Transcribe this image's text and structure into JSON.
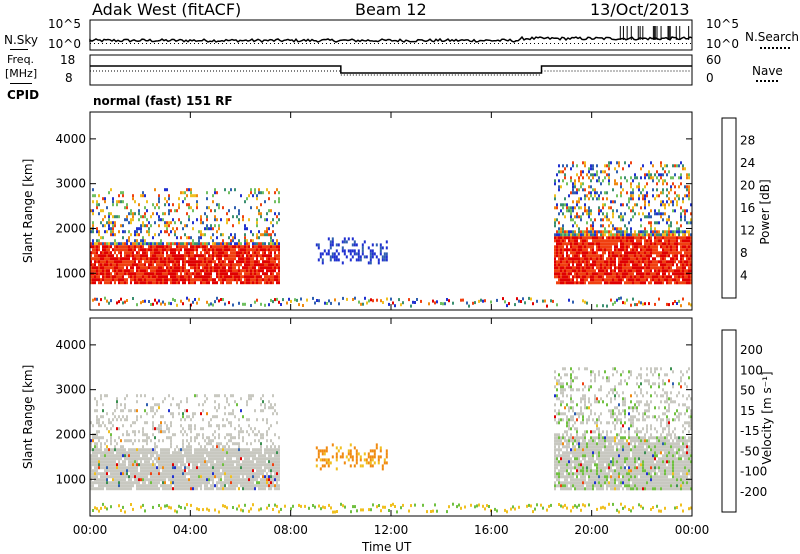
{
  "header": {
    "title": "Adak West (fitACF)",
    "beam": "Beam 12",
    "date": "13/Oct/2013"
  },
  "noise_panel": {
    "left_label": "N.Sky",
    "right_label": "N.Search",
    "left_ticks": [
      "10^5",
      "10^0"
    ],
    "right_ticks": [
      "10^5",
      "10^0"
    ]
  },
  "freq_panel": {
    "left_label_1": "Freq.",
    "left_label_2": "[MHz]",
    "right_label": "Nave",
    "left_ticks": [
      "18",
      "8"
    ],
    "right_ticks": [
      "60",
      "0"
    ],
    "cpid_label": "CPID",
    "cpid_text": "normal (fast) 151 RF"
  },
  "colors": {
    "power_scale": [
      "#2030d0",
      "#2f5fb0",
      "#3a8f70",
      "#70c060",
      "#f0c020",
      "#f08a10",
      "#f04010",
      "#e00000"
    ],
    "velocity_scale": [
      "#e00000",
      "#f04010",
      "#f08a10",
      "#f0c020",
      "#c8c8c0",
      "#70c040",
      "#3a8f50",
      "#2f5fb0",
      "#2030d0"
    ]
  },
  "chart_data": [
    {
      "type": "heatmap",
      "quantity": "power",
      "ylabel": "Slant Range [km]",
      "ylim": [
        180,
        4600
      ],
      "yticks": [
        "1000",
        "2000",
        "3000",
        "4000"
      ],
      "xlim_hours": [
        0,
        24
      ],
      "colorbar": {
        "label": "Power [dB]",
        "ticks": [
          "4",
          "8",
          "12",
          "16",
          "20",
          "24",
          "28"
        ],
        "range": [
          0,
          32
        ]
      },
      "echo_regions": [
        {
          "start_h": 0.0,
          "end_h": 7.5,
          "range_from_km": 800,
          "range_to_km": 2900,
          "peak_db": 30
        },
        {
          "start_h": 9.0,
          "end_h": 11.8,
          "range_from_km": 1200,
          "range_to_km": 1800,
          "peak_db": 6
        },
        {
          "start_h": 18.5,
          "end_h": 24.0,
          "range_from_km": 800,
          "range_to_km": 3500,
          "peak_db": 30
        }
      ]
    },
    {
      "type": "heatmap",
      "quantity": "velocity",
      "ylabel": "Slant Range [km]",
      "ylim": [
        180,
        4600
      ],
      "yticks": [
        "1000",
        "2000",
        "3000",
        "4000"
      ],
      "xlabel": "Time UT",
      "xlim_hours": [
        0,
        24
      ],
      "xticks": [
        "00:00",
        "04:00",
        "08:00",
        "12:00",
        "16:00",
        "20:00",
        "00:00"
      ],
      "colorbar": {
        "label": "Velocity [m s⁻¹]",
        "ticks": [
          "200",
          "100",
          "50",
          "15",
          "-15",
          "-50",
          "-100",
          "-200"
        ],
        "range": [
          -250,
          250
        ]
      },
      "echo_regions": [
        {
          "start_h": 0.0,
          "end_h": 7.5,
          "range_from_km": 800,
          "range_to_km": 2900,
          "velocity_ms": 0
        },
        {
          "start_h": 9.0,
          "end_h": 11.8,
          "range_from_km": 1200,
          "range_to_km": 1800,
          "velocity_ms": -60
        },
        {
          "start_h": 18.5,
          "end_h": 24.0,
          "range_from_km": 800,
          "range_to_km": 3500,
          "velocity_ms": 0
        }
      ]
    }
  ]
}
